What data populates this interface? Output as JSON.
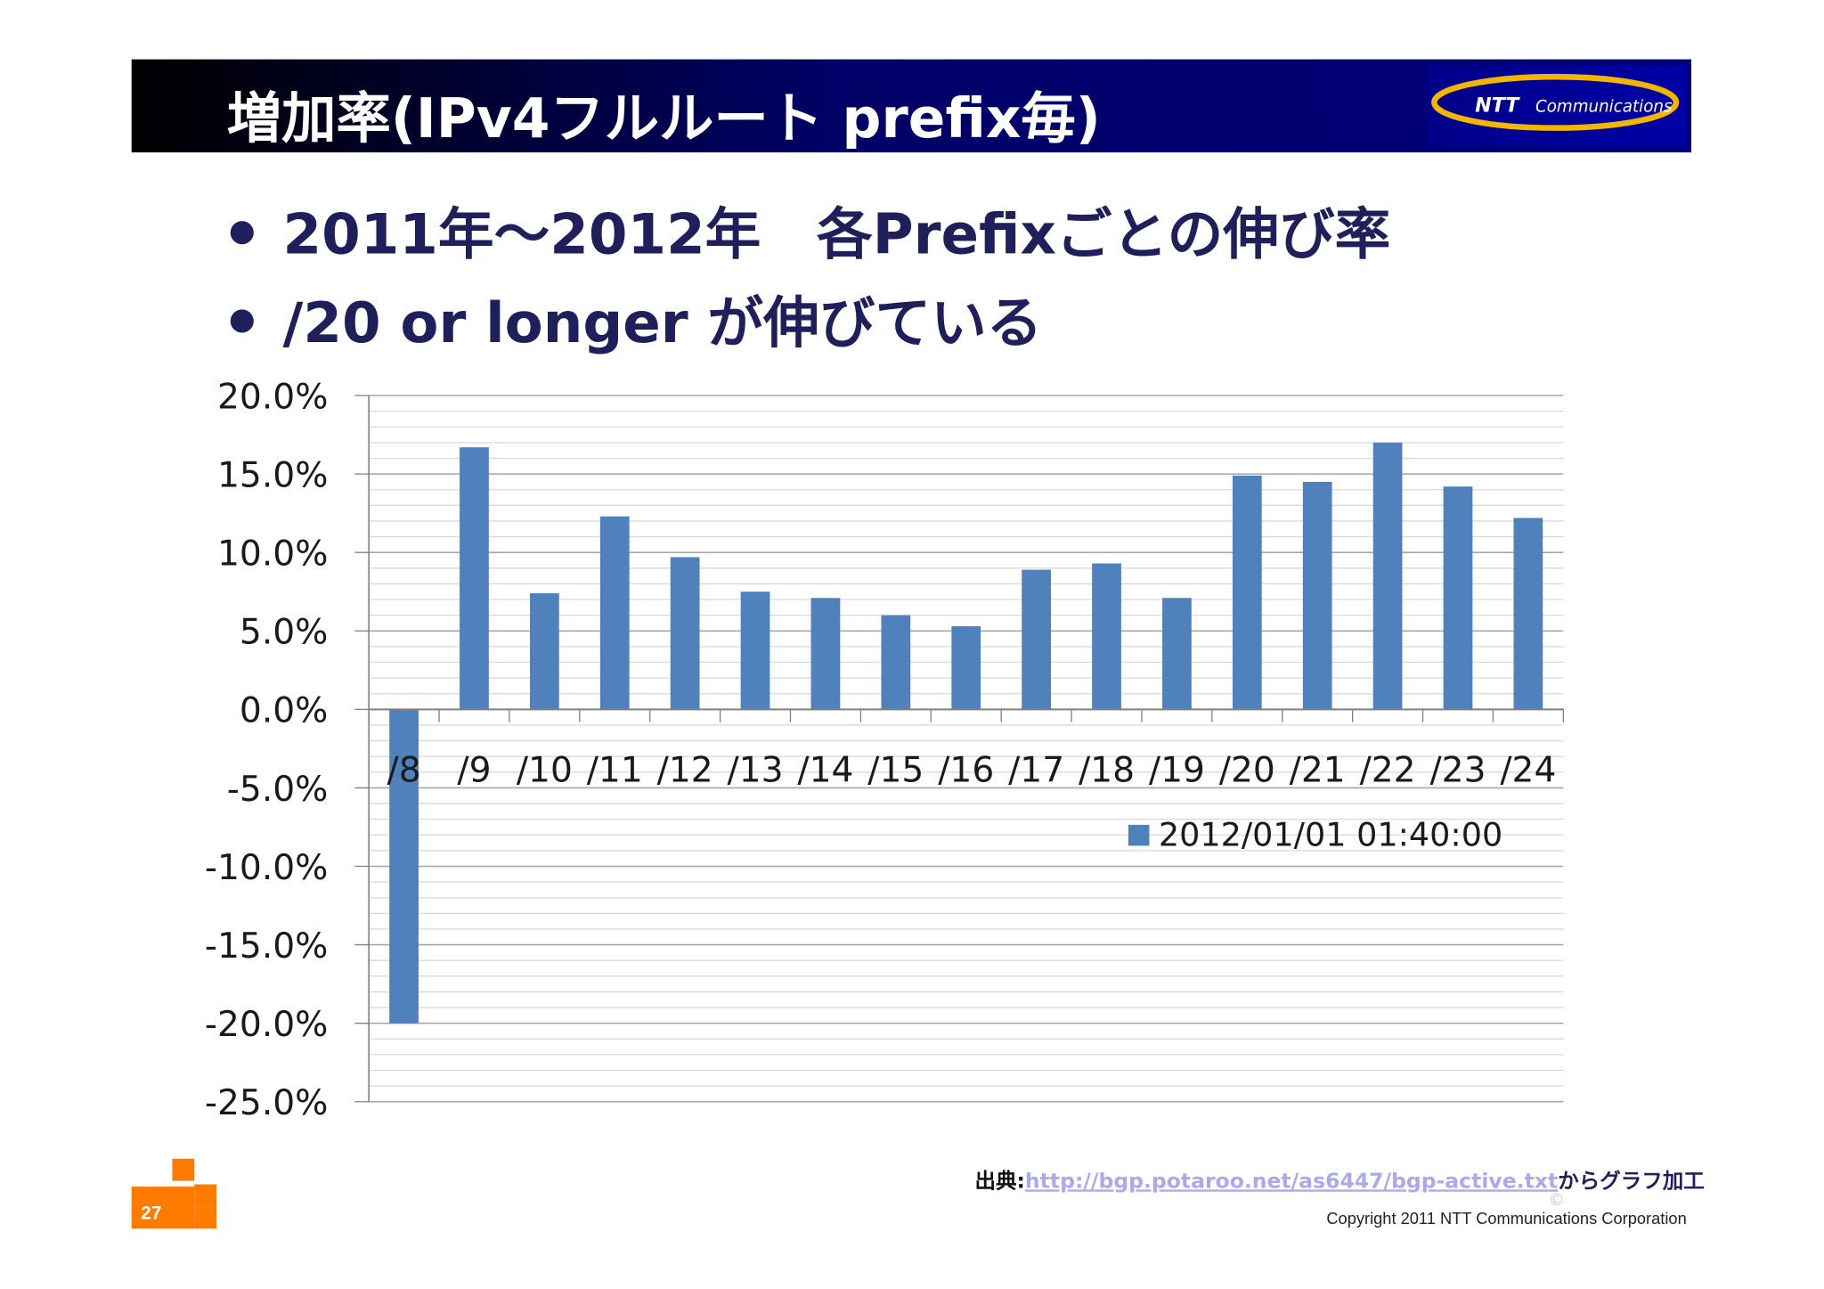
{
  "slide": {
    "title": "増加率(IPv4フルルート prefix毎)",
    "bullets": [
      "2011年～2012年　各Prefixごとの伸び率",
      "/20 or longer が伸びている"
    ],
    "logo": {
      "brand": "NTT",
      "subtitle": "Communications"
    },
    "page_number": "27",
    "source": {
      "label": "出典:",
      "url": "http://bgp.potaroo.net/as6447/bgp-active.txt",
      "suffix": "からグラフ加工"
    },
    "copyright_symbol": "©",
    "copyright": "Copyright 2011 NTT Communications Corporation",
    "colors": {
      "title_bar": "#000066",
      "bullet_text": "#1f1f5c",
      "bar": "#4f81bd",
      "logo_gold": "#f2b600",
      "page_square": "#ff7b00"
    }
  },
  "chart_data": {
    "type": "bar",
    "categories": [
      "/8",
      "/9",
      "/10",
      "/11",
      "/12",
      "/13",
      "/14",
      "/15",
      "/16",
      "/17",
      "/18",
      "/19",
      "/20",
      "/21",
      "/22",
      "/23",
      "/24"
    ],
    "series": [
      {
        "name": "2012/01/01 01:40:00",
        "values": [
          -20.0,
          16.7,
          7.4,
          12.3,
          9.7,
          7.5,
          7.1,
          6.0,
          5.3,
          8.9,
          9.3,
          7.1,
          14.9,
          14.5,
          17.0,
          14.2,
          12.2
        ]
      }
    ],
    "ylim": [
      -25.0,
      20.0
    ],
    "yticks": [
      20.0,
      15.0,
      10.0,
      5.0,
      0.0,
      -5.0,
      -10.0,
      -15.0,
      -20.0,
      -25.0
    ],
    "ytick_labels": [
      "20.0%",
      "15.0%",
      "10.0%",
      "5.0%",
      "0.0%",
      "-5.0%",
      "-10.0%",
      "-15.0%",
      "-20.0%",
      "-25.0%"
    ],
    "minor_step": 1.0,
    "grid": true,
    "legend_position": "lower-right",
    "title": "",
    "xlabel": "",
    "ylabel": ""
  }
}
